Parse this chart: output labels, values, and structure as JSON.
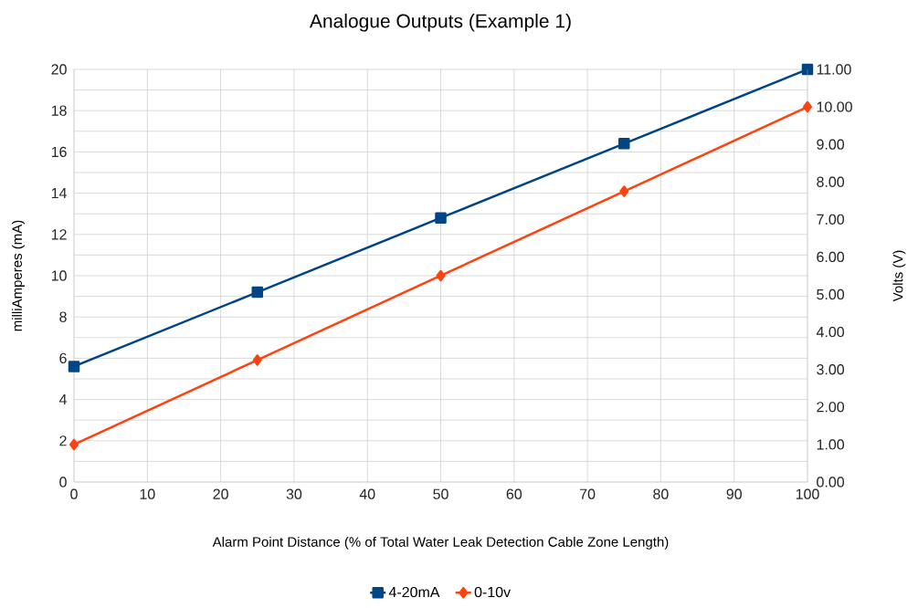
{
  "chart_data": {
    "type": "line",
    "title": "Analogue Outputs (Example 1)",
    "xlabel": "Alarm Point Distance (% of Total Water Leak Detection Cable Zone Length)",
    "ylabel": "milliAmperes (mA)",
    "y2label": "Volts (V)",
    "x": [
      0,
      25,
      50,
      75,
      100
    ],
    "series": [
      {
        "name": "4-20mA",
        "color": "#004586",
        "marker": "square",
        "values": [
          5.6,
          9.2,
          12.8,
          16.4,
          20
        ]
      },
      {
        "name": "0-10v",
        "color": "#ff420e",
        "marker": "diamond",
        "axis": "y2",
        "values": [
          1.0,
          3.25,
          5.5,
          7.75,
          10.0
        ]
      }
    ],
    "xlim": [
      0,
      100
    ],
    "xticks": [
      0,
      10,
      20,
      30,
      40,
      50,
      60,
      70,
      80,
      90,
      100
    ],
    "ylim": [
      0,
      20
    ],
    "yticks": [
      0,
      2,
      4,
      6,
      8,
      10,
      12,
      14,
      16,
      18,
      20
    ],
    "y2lim": [
      0,
      11
    ],
    "y2ticks": [
      {
        "value": 0,
        "label": "0.00"
      },
      {
        "value": 1,
        "label": "1.00"
      },
      {
        "value": 2,
        "label": "2.00"
      },
      {
        "value": 3,
        "label": "3.00"
      },
      {
        "value": 4,
        "label": "4.00"
      },
      {
        "value": 5,
        "label": "5.00"
      },
      {
        "value": 6,
        "label": "6.00"
      },
      {
        "value": 7,
        "label": "7.00"
      },
      {
        "value": 8,
        "label": "8.00"
      },
      {
        "value": 9,
        "label": "9.00"
      },
      {
        "value": 10,
        "label": "10.00"
      },
      {
        "value": 11,
        "label": "11.00"
      }
    ],
    "grid": true,
    "legend": "bottom",
    "line_style": "solid"
  }
}
